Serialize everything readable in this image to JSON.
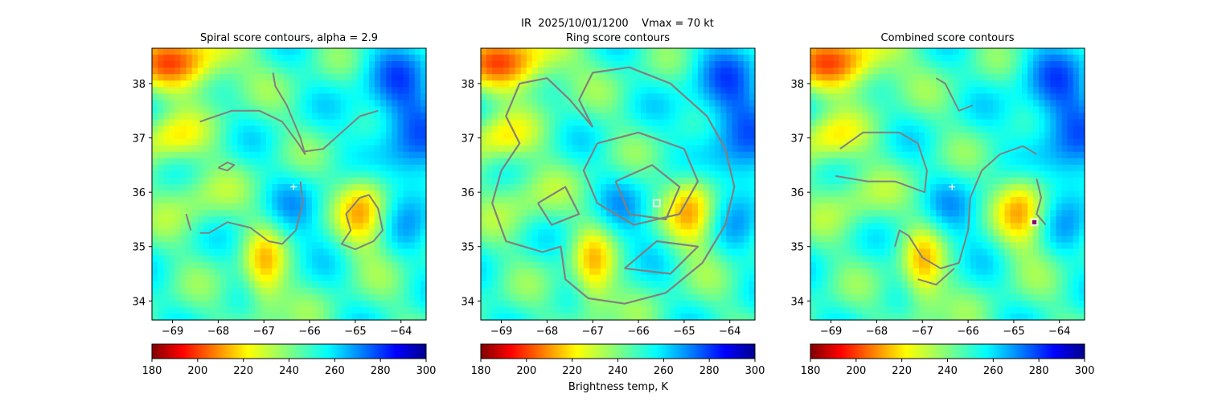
{
  "figure": {
    "suptitle": "IR  2025/10/01/1200    Vmax = 70 kt",
    "colorbar_label": "Brightness temp, K"
  },
  "chart_data": [
    {
      "type": "heatmap",
      "title": "Spiral score contours, alpha =  2.9",
      "x_ticks": [
        -69,
        -68,
        -67,
        -66,
        -65,
        -64
      ],
      "y_ticks": [
        34,
        35,
        36,
        37,
        38
      ],
      "xlim": [
        -69.45,
        -63.45
      ],
      "ylim": [
        33.65,
        38.65
      ],
      "colormap": "jet_r",
      "colorbar": {
        "min": 180,
        "max": 300,
        "ticks": [
          180,
          200,
          220,
          240,
          260,
          280,
          300
        ]
      },
      "markers": [
        {
          "type": "plus",
          "x": -66.35,
          "y": 36.1,
          "color": "#ffffff"
        }
      ],
      "contour_color": "#808080"
    },
    {
      "type": "heatmap",
      "title": "Ring score contours",
      "x_ticks": [
        -69,
        -68,
        -67,
        -66,
        -65,
        -64
      ],
      "y_ticks": [
        34,
        35,
        36,
        37,
        38
      ],
      "xlim": [
        -69.45,
        -63.45
      ],
      "ylim": [
        33.65,
        38.65
      ],
      "colormap": "jet_r",
      "colorbar": {
        "min": 180,
        "max": 300,
        "ticks": [
          180,
          200,
          220,
          240,
          260,
          280,
          300
        ]
      },
      "markers": [
        {
          "type": "square",
          "x": -65.6,
          "y": 35.8,
          "color": "#ffffff"
        }
      ],
      "contour_color": "#808080"
    },
    {
      "type": "heatmap",
      "title": "Combined score contours",
      "x_ticks": [
        -69,
        -68,
        -67,
        -66,
        -65,
        -64
      ],
      "y_ticks": [
        34,
        35,
        36,
        37,
        38
      ],
      "xlim": [
        -69.45,
        -63.45
      ],
      "ylim": [
        33.65,
        38.65
      ],
      "colormap": "jet_r",
      "colorbar": {
        "min": 180,
        "max": 300,
        "ticks": [
          180,
          200,
          220,
          240,
          260,
          280,
          300
        ]
      },
      "markers": [
        {
          "type": "plus",
          "x": -66.35,
          "y": 36.1,
          "color": "#ffffff"
        },
        {
          "type": "square",
          "x": -64.55,
          "y": 35.45,
          "color": "#ffffff"
        },
        {
          "type": "dot",
          "x": -64.55,
          "y": 35.45,
          "color": "#800080"
        }
      ],
      "contour_color": "#808080"
    }
  ]
}
